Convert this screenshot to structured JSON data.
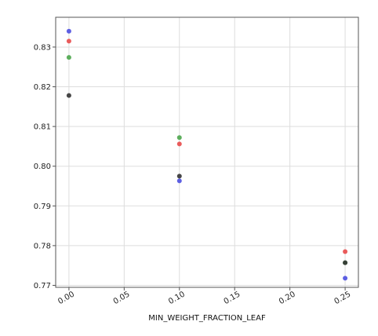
{
  "chart_data": {
    "type": "scatter",
    "title": "",
    "xlabel": "MIN_WEIGHT_FRACTION_LEAF",
    "ylabel": "",
    "xlim": [
      -0.012,
      0.262
    ],
    "ylim": [
      0.7695,
      0.8375
    ],
    "grid": true,
    "legend": "none",
    "x_ticks": [
      "0.00",
      "0.05",
      "0.10",
      "0.15",
      "0.20",
      "0.25"
    ],
    "x_tick_values": [
      0.0,
      0.05,
      0.1,
      0.15,
      0.2,
      0.25
    ],
    "y_ticks": [
      "0.77",
      "0.78",
      "0.79",
      "0.80",
      "0.81",
      "0.82",
      "0.83"
    ],
    "y_tick_values": [
      0.77,
      0.78,
      0.79,
      0.8,
      0.81,
      0.82,
      0.83
    ],
    "series": [
      {
        "color": "#4c4fe0",
        "x": [
          0.0,
          0.1,
          0.25
        ],
        "y": [
          0.834,
          0.7963,
          0.7718
        ]
      },
      {
        "color": "#e84a4a",
        "x": [
          0.0,
          0.1,
          0.25
        ],
        "y": [
          0.8315,
          0.8056,
          0.7785
        ]
      },
      {
        "color": "#4ca64c",
        "x": [
          0.0,
          0.1,
          0.25
        ],
        "y": [
          0.8274,
          0.8072,
          0.7757
        ]
      },
      {
        "color": "#333333",
        "x": [
          0.0,
          0.1,
          0.25
        ],
        "y": [
          0.8178,
          0.7975,
          0.7757
        ]
      }
    ]
  }
}
